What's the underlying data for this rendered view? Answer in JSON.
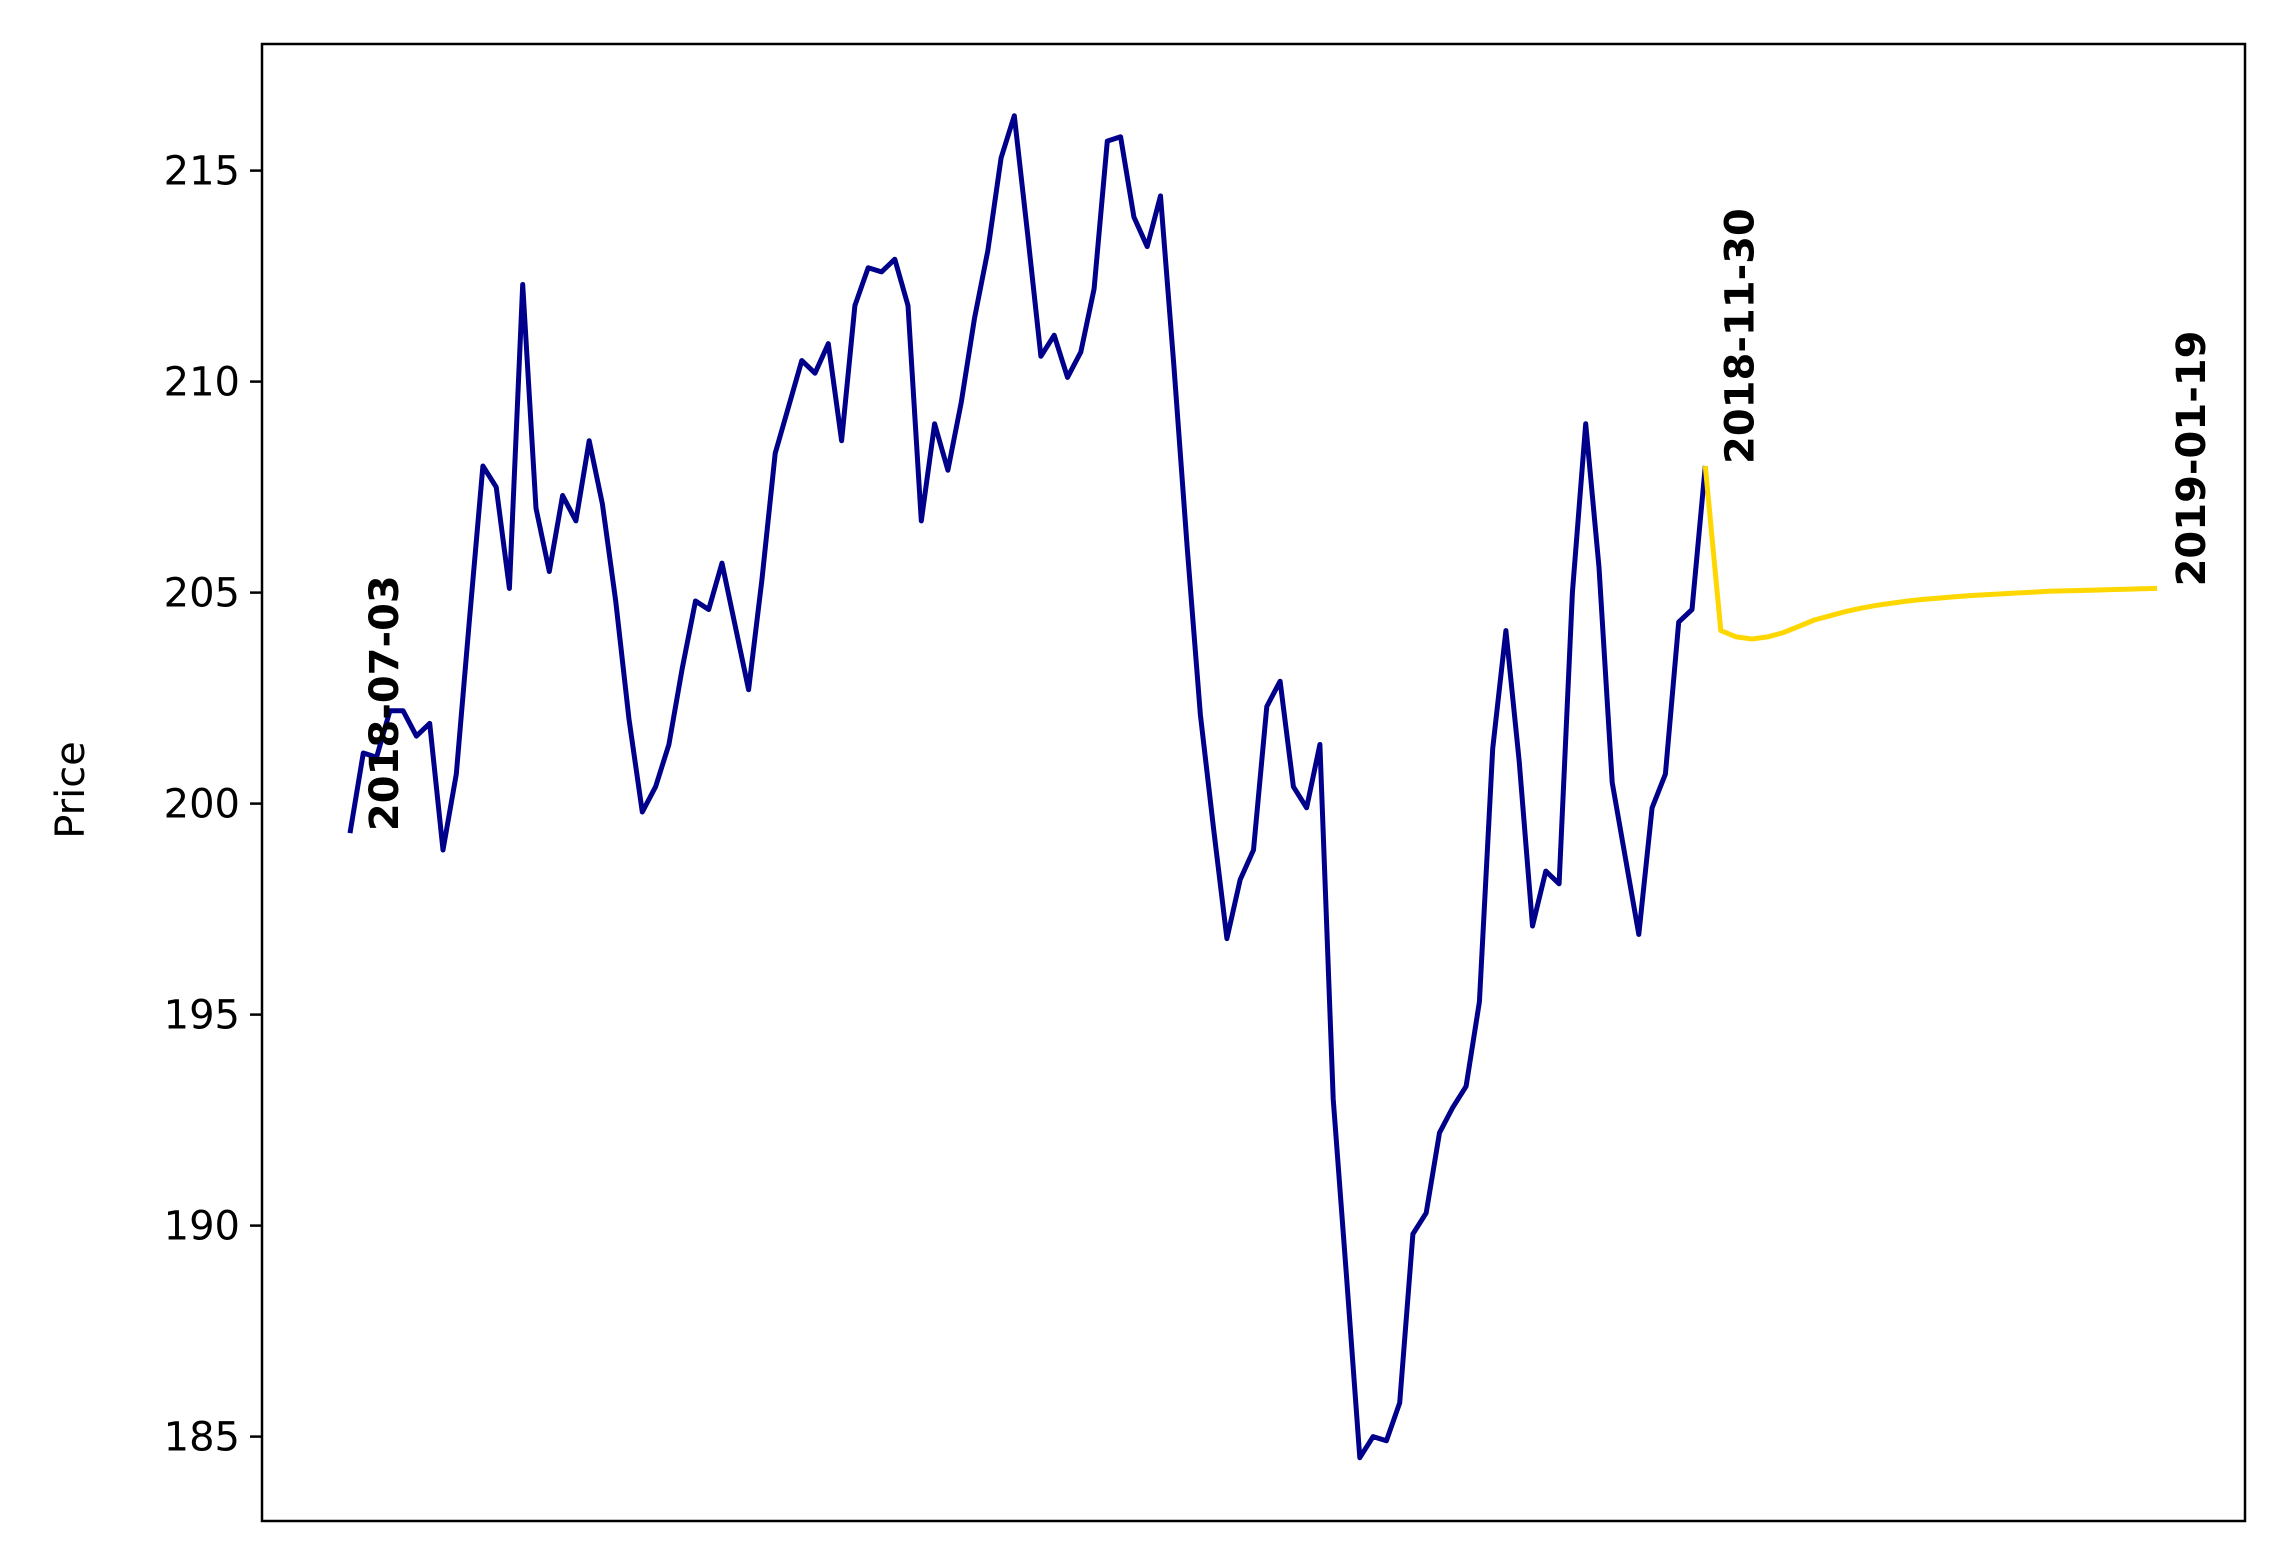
{
  "chart_data": {
    "type": "line",
    "title": "",
    "xlabel": "",
    "ylabel": "Price",
    "ylim": [
      183,
      218
    ],
    "yticks": [
      185,
      190,
      195,
      200,
      205,
      210,
      215
    ],
    "xticks_visible": false,
    "grid": false,
    "legend": "none",
    "date_annotations": [
      "2018-07-03",
      "2018-11-30",
      "2019-01-19"
    ],
    "series": [
      {
        "color": "#00008b",
        "role": "history",
        "x_start": "2018-07-03",
        "x_end": "2018-11-30",
        "values": [
          199.3,
          201.2,
          201.1,
          202.2,
          202.2,
          201.6,
          201.9,
          198.9,
          200.7,
          204.4,
          208.0,
          207.5,
          205.1,
          212.3,
          207.0,
          205.5,
          207.3,
          206.7,
          208.6,
          207.1,
          204.8,
          202.0,
          199.8,
          200.4,
          201.4,
          203.2,
          204.8,
          204.6,
          205.7,
          204.2,
          202.7,
          205.3,
          208.3,
          209.4,
          210.5,
          210.2,
          210.9,
          208.6,
          211.8,
          212.7,
          212.6,
          212.9,
          211.8,
          206.7,
          209.0,
          207.9,
          209.5,
          211.5,
          213.1,
          215.3,
          216.3,
          213.5,
          210.6,
          211.1,
          210.1,
          210.7,
          212.2,
          215.7,
          215.8,
          213.9,
          213.2,
          214.4,
          210.4,
          206.1,
          202.1,
          199.4,
          196.8,
          198.2,
          198.9,
          202.3,
          202.9,
          200.4,
          199.9,
          201.4,
          193.0,
          188.8,
          184.5,
          185.0,
          184.9,
          185.8,
          189.8,
          190.3,
          192.2,
          192.8,
          193.3,
          195.3,
          201.3,
          204.1,
          201.0,
          197.1,
          198.4,
          198.1,
          205.0,
          209.0,
          205.6,
          200.5,
          198.7,
          196.9,
          199.9,
          200.7,
          204.3,
          204.6,
          208.0
        ]
      },
      {
        "color": "#ffd700",
        "role": "forecast",
        "x_start": "2018-11-30",
        "x_end": "2019-01-19",
        "values": [
          208.0,
          204.1,
          203.95,
          203.9,
          203.95,
          204.05,
          204.2,
          204.35,
          204.45,
          204.55,
          204.63,
          204.7,
          204.75,
          204.8,
          204.84,
          204.87,
          204.9,
          204.93,
          204.95,
          204.97,
          204.99,
          205.01,
          205.03,
          205.04,
          205.05,
          205.06,
          205.07,
          205.08,
          205.09,
          205.1
        ]
      }
    ]
  }
}
